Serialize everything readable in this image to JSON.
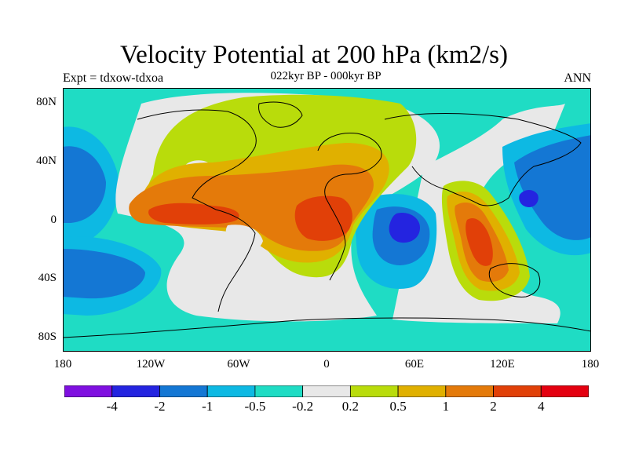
{
  "title": "Velocity Potential at 200 hPa (km2/s)",
  "subtitle": "022kyr BP - 000kyr BP",
  "left_label": "Expt = tdxow-tdxoa",
  "right_label": "ANN",
  "lat_ticks": [
    {
      "label": "80N",
      "value": 80
    },
    {
      "label": "40N",
      "value": 40
    },
    {
      "label": "0",
      "value": 0
    },
    {
      "label": "40S",
      "value": -40
    },
    {
      "label": "80S",
      "value": -80
    }
  ],
  "lon_ticks": [
    {
      "label": "180",
      "value": -180
    },
    {
      "label": "120W",
      "value": -120
    },
    {
      "label": "60W",
      "value": -60
    },
    {
      "label": "0",
      "value": 0
    },
    {
      "label": "60E",
      "value": 60
    },
    {
      "label": "120E",
      "value": 120
    },
    {
      "label": "180",
      "value": 180
    }
  ],
  "colorbar": {
    "colors": [
      "#7f10e0",
      "#2424e0",
      "#1477d4",
      "#0db9e3",
      "#1fdcc4",
      "#e8e8e8",
      "#b9dc0b",
      "#e0b000",
      "#e47a0a",
      "#e14008",
      "#e40010"
    ],
    "labels": [
      "-4",
      "-2",
      "-1",
      "-0.5",
      "-0.2",
      "0.2",
      "0.5",
      "1",
      "2",
      "4"
    ]
  },
  "map_colors": {
    "background": "#1fdcc4",
    "neutral": "#e8e8e8",
    "level_0_5": "#b9dc0b",
    "level_1": "#e0b000",
    "level_2": "#e47a0a",
    "level_4": "#e14008",
    "neg_0_5": "#0db9e3",
    "neg_1": "#1477d4",
    "neg_2": "#2424e0"
  }
}
